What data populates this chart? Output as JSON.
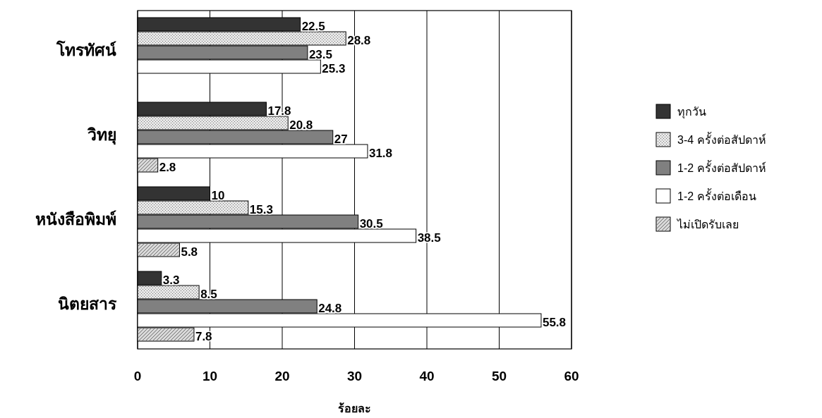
{
  "chart_data": {
    "type": "bar",
    "orientation": "horizontal",
    "categories": [
      "โทรทัศน์",
      "วิทยุ",
      "หนังสือพิมพ์",
      "นิตยสาร"
    ],
    "series": [
      {
        "name": "ทุกวัน",
        "color": "#333333",
        "values": [
          22.5,
          17.8,
          10,
          3.3
        ]
      },
      {
        "name": "3-4 ครั้งต่อสัปดาห์",
        "color": "#e6e6e6",
        "values": [
          28.8,
          20.8,
          15.3,
          8.5
        ]
      },
      {
        "name": "1-2 ครั้งต่อสัปดาห์",
        "color": "#808080",
        "values": [
          23.5,
          27,
          30.5,
          24.8
        ]
      },
      {
        "name": "1-2 ครั้งต่อเดือน",
        "color": "#ffffff",
        "values": [
          25.3,
          31.8,
          38.5,
          55.8
        ]
      },
      {
        "name": "ไม่เปิดรับเลย",
        "color": "#d9d9d9",
        "values": [
          null,
          2.8,
          5.8,
          7.8
        ]
      }
    ],
    "xlim": [
      0,
      60
    ],
    "xticks": [
      0,
      10,
      20,
      30,
      40,
      50,
      60
    ],
    "xlabel": "ร้อยละ",
    "grid": "x",
    "legend": "right",
    "data_labels": true
  }
}
